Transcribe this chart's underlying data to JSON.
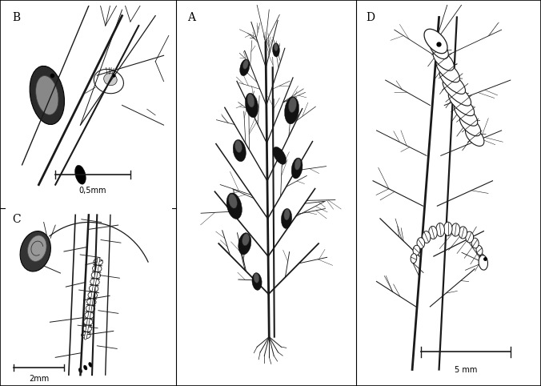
{
  "figure_width": 6.76,
  "figure_height": 4.82,
  "dpi": 100,
  "bg_color": "#ffffff",
  "border_color": "#000000",
  "lc": "#1a1a1a",
  "panel_label_fontsize": 10,
  "scale_bar_fontsize": 7,
  "panels": {
    "B": {
      "label": "B",
      "scale": "0,5mm"
    },
    "C": {
      "label": "C",
      "scale": "2mm"
    },
    "A": {
      "label": "A"
    },
    "D": {
      "label": "D",
      "scale": "5 mm"
    }
  }
}
